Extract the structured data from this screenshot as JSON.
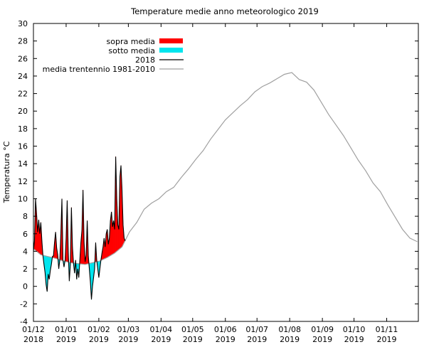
{
  "chart_data": {
    "type": "area",
    "title": "Temperature medie anno meteorologico 2019",
    "xlabel": "",
    "ylabel": "Temperatura °C",
    "ylim": [
      -4,
      30
    ],
    "yticks": [
      -4,
      -2,
      0,
      2,
      4,
      6,
      8,
      10,
      12,
      14,
      16,
      18,
      20,
      22,
      24,
      26,
      28,
      30
    ],
    "xlim": [
      "2018-12-01",
      "2019-11-30"
    ],
    "xticks": [
      {
        "date": "2018-12-01",
        "line1": "01/12",
        "line2": "2018"
      },
      {
        "date": "2019-01-01",
        "line1": "01/01",
        "line2": "2019"
      },
      {
        "date": "2019-02-01",
        "line1": "01/02",
        "line2": "2019"
      },
      {
        "date": "2019-03-01",
        "line1": "01/03",
        "line2": "2019"
      },
      {
        "date": "2019-04-01",
        "line1": "01/04",
        "line2": "2019"
      },
      {
        "date": "2019-05-01",
        "line1": "01/05",
        "line2": "2019"
      },
      {
        "date": "2019-06-01",
        "line1": "01/06",
        "line2": "2019"
      },
      {
        "date": "2019-07-01",
        "line1": "01/07",
        "line2": "2019"
      },
      {
        "date": "2019-08-01",
        "line1": "01/08",
        "line2": "2019"
      },
      {
        "date": "2019-09-01",
        "line1": "01/09",
        "line2": "2019"
      },
      {
        "date": "2019-10-01",
        "line1": "01/10",
        "line2": "2019"
      },
      {
        "date": "2019-11-01",
        "line1": "01/11",
        "line2": "2019"
      }
    ],
    "legend_position": "top-left",
    "colors": {
      "above": "#ff0000",
      "below": "#00e5ee",
      "actual": "#000000",
      "normal": "#a0a0a0"
    },
    "series": [
      {
        "name": "media trentennio 1981-2010",
        "points": [
          [
            "2018-12-01",
            4.3
          ],
          [
            "2018-12-08",
            3.6
          ],
          [
            "2018-12-15",
            3.4
          ],
          [
            "2018-12-22",
            3.2
          ],
          [
            "2018-12-29",
            2.9
          ],
          [
            "2019-01-05",
            2.7
          ],
          [
            "2019-01-12",
            2.6
          ],
          [
            "2019-01-19",
            2.5
          ],
          [
            "2019-01-26",
            2.7
          ],
          [
            "2019-02-02",
            2.9
          ],
          [
            "2019-02-09",
            3.3
          ],
          [
            "2019-02-16",
            3.8
          ],
          [
            "2019-02-23",
            4.5
          ],
          [
            "2019-03-02",
            6.2
          ],
          [
            "2019-03-09",
            7.3
          ],
          [
            "2019-03-16",
            8.8
          ],
          [
            "2019-03-23",
            9.5
          ],
          [
            "2019-03-30",
            10.0
          ],
          [
            "2019-04-06",
            10.8
          ],
          [
            "2019-04-13",
            11.3
          ],
          [
            "2019-04-20",
            12.4
          ],
          [
            "2019-04-27",
            13.4
          ],
          [
            "2019-05-04",
            14.5
          ],
          [
            "2019-05-11",
            15.5
          ],
          [
            "2019-05-18",
            16.8
          ],
          [
            "2019-05-25",
            17.9
          ],
          [
            "2019-06-01",
            19.0
          ],
          [
            "2019-06-08",
            19.8
          ],
          [
            "2019-06-15",
            20.6
          ],
          [
            "2019-06-22",
            21.3
          ],
          [
            "2019-06-29",
            22.2
          ],
          [
            "2019-07-06",
            22.8
          ],
          [
            "2019-07-13",
            23.2
          ],
          [
            "2019-07-20",
            23.7
          ],
          [
            "2019-07-27",
            24.2
          ],
          [
            "2019-08-03",
            24.4
          ],
          [
            "2019-08-10",
            23.6
          ],
          [
            "2019-08-17",
            23.3
          ],
          [
            "2019-08-24",
            22.4
          ],
          [
            "2019-08-31",
            21.0
          ],
          [
            "2019-09-07",
            19.6
          ],
          [
            "2019-09-14",
            18.4
          ],
          [
            "2019-09-21",
            17.2
          ],
          [
            "2019-09-28",
            15.8
          ],
          [
            "2019-10-05",
            14.4
          ],
          [
            "2019-10-12",
            13.2
          ],
          [
            "2019-10-19",
            11.8
          ],
          [
            "2019-10-26",
            10.8
          ],
          [
            "2019-11-02",
            9.3
          ],
          [
            "2019-11-09",
            7.9
          ],
          [
            "2019-11-16",
            6.5
          ],
          [
            "2019-11-23",
            5.5
          ],
          [
            "2019-11-30",
            5.1
          ]
        ]
      },
      {
        "name": "2018",
        "points": [
          [
            "2018-12-01",
            4.0
          ],
          [
            "2018-12-02",
            5.2
          ],
          [
            "2018-12-03",
            10.0
          ],
          [
            "2018-12-04",
            8.2
          ],
          [
            "2018-12-05",
            6.2
          ],
          [
            "2018-12-06",
            7.6
          ],
          [
            "2018-12-07",
            6.0
          ],
          [
            "2018-12-08",
            7.3
          ],
          [
            "2018-12-09",
            5.2
          ],
          [
            "2018-12-10",
            3.5
          ],
          [
            "2018-12-11",
            2.5
          ],
          [
            "2018-12-12",
            1.6
          ],
          [
            "2018-12-13",
            0.2
          ],
          [
            "2018-12-14",
            -0.6
          ],
          [
            "2018-12-15",
            1.4
          ],
          [
            "2018-12-16",
            0.8
          ],
          [
            "2018-12-17",
            1.8
          ],
          [
            "2018-12-18",
            2.5
          ],
          [
            "2018-12-19",
            3.4
          ],
          [
            "2018-12-20",
            3.5
          ],
          [
            "2018-12-21",
            5.0
          ],
          [
            "2018-12-22",
            6.2
          ],
          [
            "2018-12-23",
            4.4
          ],
          [
            "2018-12-24",
            3.6
          ],
          [
            "2018-12-25",
            2.0
          ],
          [
            "2018-12-26",
            3.0
          ],
          [
            "2018-12-27",
            6.0
          ],
          [
            "2018-12-28",
            10.0
          ],
          [
            "2018-12-29",
            3.0
          ],
          [
            "2018-12-30",
            2.2
          ],
          [
            "2018-12-31",
            3.0
          ],
          [
            "2019-01-01",
            5.5
          ],
          [
            "2019-01-02",
            9.8
          ],
          [
            "2019-01-03",
            4.0
          ],
          [
            "2019-01-04",
            0.6
          ],
          [
            "2019-01-05",
            2.5
          ],
          [
            "2019-01-06",
            9.0
          ],
          [
            "2019-01-07",
            4.5
          ],
          [
            "2019-01-08",
            2.6
          ],
          [
            "2019-01-09",
            1.5
          ],
          [
            "2019-01-10",
            3.0
          ],
          [
            "2019-01-11",
            0.8
          ],
          [
            "2019-01-12",
            2.0
          ],
          [
            "2019-01-13",
            1.0
          ],
          [
            "2019-01-14",
            3.0
          ],
          [
            "2019-01-15",
            5.0
          ],
          [
            "2019-01-16",
            6.4
          ],
          [
            "2019-01-17",
            11.0
          ],
          [
            "2019-01-18",
            5.0
          ],
          [
            "2019-01-19",
            2.8
          ],
          [
            "2019-01-20",
            3.6
          ],
          [
            "2019-01-21",
            7.5
          ],
          [
            "2019-01-22",
            3.5
          ],
          [
            "2019-01-23",
            2.0
          ],
          [
            "2019-01-24",
            0.5
          ],
          [
            "2019-01-25",
            -1.5
          ],
          [
            "2019-01-26",
            0.0
          ],
          [
            "2019-01-27",
            1.0
          ],
          [
            "2019-01-28",
            2.0
          ],
          [
            "2019-01-29",
            5.0
          ],
          [
            "2019-01-30",
            3.0
          ],
          [
            "2019-01-31",
            2.0
          ],
          [
            "2019-02-01",
            1.0
          ],
          [
            "2019-02-02",
            2.0
          ],
          [
            "2019-02-03",
            3.0
          ],
          [
            "2019-02-04",
            3.8
          ],
          [
            "2019-02-05",
            4.5
          ],
          [
            "2019-02-06",
            5.5
          ],
          [
            "2019-02-07",
            4.5
          ],
          [
            "2019-02-08",
            6.0
          ],
          [
            "2019-02-09",
            6.5
          ],
          [
            "2019-02-10",
            4.8
          ],
          [
            "2019-02-11",
            5.5
          ],
          [
            "2019-02-12",
            7.5
          ],
          [
            "2019-02-13",
            8.5
          ],
          [
            "2019-02-14",
            6.8
          ],
          [
            "2019-02-15",
            7.5
          ],
          [
            "2019-02-16",
            6.5
          ],
          [
            "2019-02-17",
            14.8
          ],
          [
            "2019-02-18",
            10.0
          ],
          [
            "2019-02-19",
            7.0
          ],
          [
            "2019-02-20",
            6.5
          ],
          [
            "2019-02-21",
            12.5
          ],
          [
            "2019-02-22",
            13.8
          ],
          [
            "2019-02-23",
            11.0
          ],
          [
            "2019-02-24",
            7.0
          ],
          [
            "2019-02-25",
            5.5
          ],
          [
            "2019-02-26",
            5.2
          ]
        ]
      }
    ],
    "legend_entries": [
      {
        "label": "sopra media",
        "kind": "fill",
        "color": "#ff0000"
      },
      {
        "label": "sotto media",
        "kind": "fill",
        "color": "#00e5ee"
      },
      {
        "label": "2018",
        "kind": "line",
        "color": "#000000"
      },
      {
        "label": "media trentennio 1981-2010",
        "kind": "line",
        "color": "#a0a0a0"
      }
    ]
  }
}
